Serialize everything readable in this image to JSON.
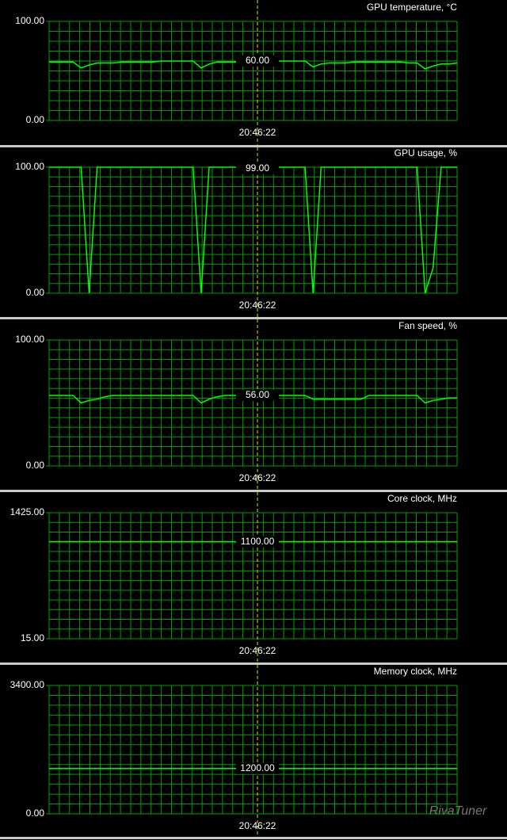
{
  "chart_data": [
    {
      "type": "line",
      "title": "GPU temperature, °C",
      "color": "#00ff00",
      "grid": true,
      "ylim": [
        0,
        100
      ],
      "yticks": [
        {
          "value": 0,
          "label": "0.00"
        },
        {
          "value": 100,
          "label": "100.00"
        }
      ],
      "values": [
        59,
        59,
        59,
        59,
        53,
        56,
        58,
        58,
        58,
        59,
        59,
        59,
        59,
        59,
        60,
        60,
        60,
        60,
        60,
        53,
        57,
        59,
        59,
        59,
        59,
        60,
        60,
        60,
        60,
        60,
        60,
        60,
        60,
        54,
        57,
        58,
        58,
        58,
        59,
        59,
        59,
        59,
        59,
        59,
        59,
        58,
        58,
        52,
        55,
        57,
        57,
        58
      ],
      "cursor": {
        "time": "20:46:22",
        "value": 60,
        "label": "60.00"
      }
    },
    {
      "type": "line",
      "title": "GPU usage, %",
      "color": "#00ff00",
      "grid": true,
      "ylim": [
        0,
        100
      ],
      "yticks": [
        {
          "value": 0,
          "label": "0.00"
        },
        {
          "value": 100,
          "label": "100.00"
        }
      ],
      "values": [
        100,
        100,
        100,
        100,
        100,
        0,
        100,
        100,
        100,
        100,
        100,
        100,
        100,
        100,
        100,
        100,
        100,
        100,
        100,
        0,
        100,
        100,
        100,
        100,
        100,
        100,
        100,
        100,
        100,
        100,
        100,
        100,
        100,
        0,
        100,
        100,
        100,
        100,
        100,
        100,
        100,
        100,
        100,
        100,
        100,
        100,
        100,
        0,
        20,
        100,
        100,
        100
      ],
      "cursor": {
        "time": "20:46:22",
        "value": 99,
        "label": "99.00"
      }
    },
    {
      "type": "line",
      "title": "Fan speed, %",
      "color": "#00ff00",
      "grid": true,
      "ylim": [
        0,
        100
      ],
      "yticks": [
        {
          "value": 0,
          "label": "0.00"
        },
        {
          "value": 100,
          "label": "100.00"
        }
      ],
      "values": [
        56,
        56,
        56,
        56,
        50,
        52,
        53,
        55,
        56,
        56,
        56,
        56,
        56,
        56,
        56,
        56,
        56,
        56,
        56,
        50,
        53,
        55,
        56,
        56,
        56,
        56,
        56,
        56,
        56,
        56,
        56,
        56,
        56,
        53,
        53,
        53,
        53,
        53,
        53,
        53,
        56,
        56,
        56,
        56,
        56,
        56,
        56,
        50,
        52,
        53,
        54,
        54
      ],
      "cursor": {
        "time": "20:46:22",
        "value": 56,
        "label": "56.00"
      }
    },
    {
      "type": "line",
      "title": "Core clock, MHz",
      "color": "#00ff00",
      "grid": true,
      "ylim": [
        15,
        1425
      ],
      "yticks": [
        {
          "value": 15,
          "label": "15.00"
        },
        {
          "value": 1425,
          "label": "1425.00"
        }
      ],
      "values": [
        1100,
        1100
      ],
      "cursor": {
        "time": "20:46:22",
        "value": 1100,
        "label": "1100.00"
      }
    },
    {
      "type": "line",
      "title": "Memory clock, MHz",
      "color": "#00ff00",
      "grid": true,
      "ylim": [
        0,
        3400
      ],
      "yticks": [
        {
          "value": 0,
          "label": "0.00"
        },
        {
          "value": 3400,
          "label": "3400.00"
        }
      ],
      "values": [
        1200,
        1200
      ],
      "cursor": {
        "time": "20:46:22",
        "value": 1200,
        "label": "1200.00"
      }
    }
  ],
  "watermark": "RivaTuner"
}
